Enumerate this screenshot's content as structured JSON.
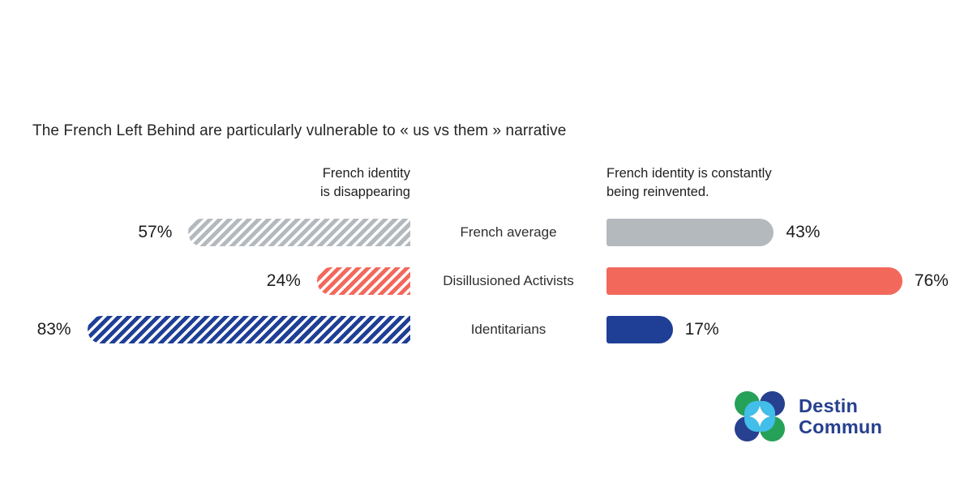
{
  "title": "The French Left Behind are particularly vulnerable to « us vs them » narrative",
  "headers": {
    "left": "French identity\nis disappearing",
    "right": "French identity is constantly\nbeing reinvented."
  },
  "chart_data": {
    "type": "bar",
    "subtype": "diverging-paired-horizontal",
    "title": "The French Left Behind are particularly vulnerable to « us vs them » narrative",
    "categories": [
      "French average",
      "Disillusioned Activists",
      "Identitarians"
    ],
    "series": [
      {
        "name": "French identity is disappearing",
        "side": "left",
        "style": "hatched",
        "values": [
          57,
          24,
          83
        ]
      },
      {
        "name": "French identity is constantly being reinvented.",
        "side": "right",
        "style": "solid",
        "values": [
          43,
          76,
          17
        ]
      }
    ],
    "rows": [
      {
        "category": "French average",
        "left": 57,
        "left_label": "57%",
        "right": 43,
        "right_label": "43%",
        "color": "#b4b9be"
      },
      {
        "category": "Disillusioned Activists",
        "left": 24,
        "left_label": "24%",
        "right": 76,
        "right_label": "76%",
        "color": "#f2695c"
      },
      {
        "category": "Identitarians",
        "left": 83,
        "left_label": "83%",
        "right": 17,
        "right_label": "17%",
        "color": "#1f3f96"
      }
    ],
    "value_unit": "%",
    "xlim": [
      0,
      100
    ],
    "grid": false,
    "legend_position": "column-headers"
  },
  "logo": {
    "line1": "Destin",
    "line2": "Commun",
    "colors": {
      "navy": "#27408f",
      "green": "#26a158",
      "cyan": "#41bee9"
    }
  }
}
